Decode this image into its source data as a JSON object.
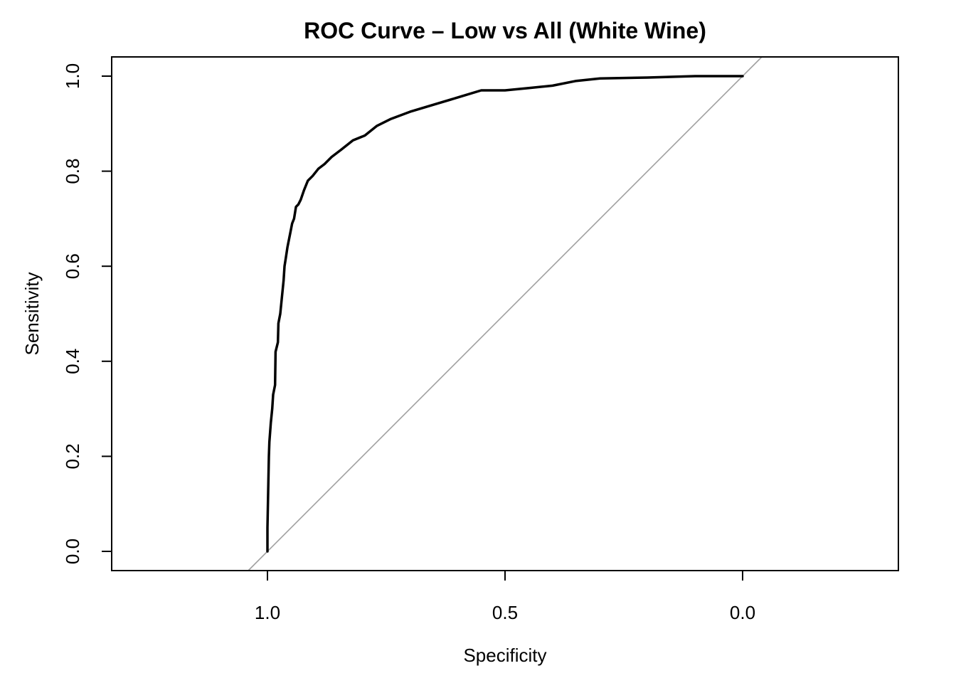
{
  "chart_data": {
    "type": "line",
    "title": "ROC Curve – Low vs All (White Wine)",
    "xlabel": "Specificity",
    "ylabel": "Sensitivity",
    "x_reversed": true,
    "xlim": [
      1.33,
      -0.33
    ],
    "ylim": [
      -0.04,
      1.04
    ],
    "x_ticks": [
      1.0,
      0.5,
      0.0
    ],
    "x_tick_labels": [
      "1.0",
      "0.5",
      "0.0"
    ],
    "y_ticks": [
      0.0,
      0.2,
      0.4,
      0.6,
      0.8,
      1.0
    ],
    "y_tick_labels": [
      "0.0",
      "0.2",
      "0.4",
      "0.6",
      "0.8",
      "1.0"
    ],
    "grid": false,
    "series": [
      {
        "color": "#000000",
        "specificity": [
          1.0,
          1.0,
          0.997,
          0.996,
          0.993,
          0.99,
          0.988,
          0.984,
          0.983,
          0.978,
          0.977,
          0.973,
          0.97,
          0.966,
          0.964,
          0.961,
          0.958,
          0.952,
          0.948,
          0.944,
          0.94,
          0.935,
          0.93,
          0.923,
          0.915,
          0.905,
          0.893,
          0.88,
          0.865,
          0.845,
          0.82,
          0.795,
          0.77,
          0.74,
          0.7,
          0.65,
          0.6,
          0.55,
          0.5,
          0.45,
          0.4,
          0.35,
          0.3,
          0.2,
          0.1,
          0.0
        ],
        "sensitivity": [
          0.0,
          0.05,
          0.2,
          0.23,
          0.27,
          0.3,
          0.33,
          0.35,
          0.42,
          0.44,
          0.48,
          0.5,
          0.53,
          0.57,
          0.6,
          0.62,
          0.64,
          0.67,
          0.69,
          0.7,
          0.725,
          0.73,
          0.74,
          0.76,
          0.78,
          0.79,
          0.805,
          0.815,
          0.83,
          0.845,
          0.865,
          0.875,
          0.895,
          0.91,
          0.925,
          0.94,
          0.955,
          0.97,
          0.97,
          0.975,
          0.98,
          0.99,
          0.995,
          0.997,
          1.0,
          1.0
        ]
      }
    ],
    "reference_line": {
      "color": "#a0a0a0",
      "intercept": 1,
      "slope": -1
    }
  }
}
